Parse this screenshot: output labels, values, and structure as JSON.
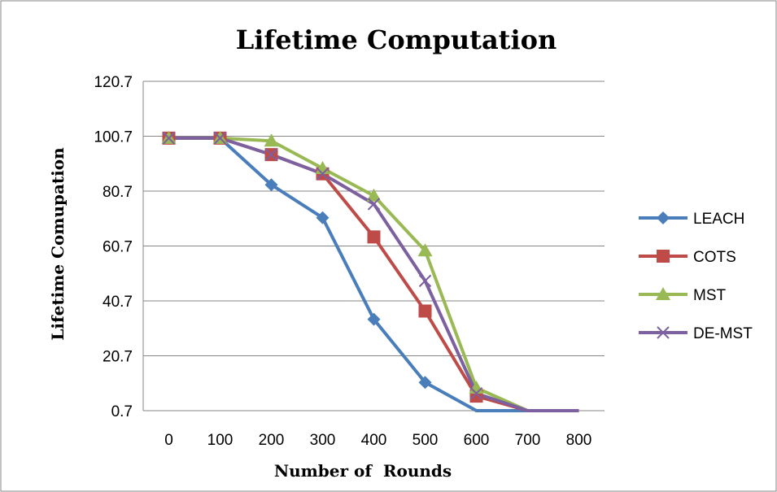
{
  "chart_data": {
    "type": "line",
    "title": "Lifetime Computation",
    "xlabel": "Number of  Rounds",
    "ylabel": "Lifetime Comupation",
    "x": [
      0,
      100,
      200,
      300,
      400,
      500,
      600,
      700,
      800
    ],
    "x_ticks": [
      "0",
      "100",
      "200",
      "300",
      "400",
      "500",
      "600",
      "700",
      "800"
    ],
    "y_ticks": [
      "0.7",
      "20.7",
      "40.7",
      "60.7",
      "80.7",
      "100.7",
      "120.7"
    ],
    "ylim": [
      0.7,
      120.7
    ],
    "grid": true,
    "legend_position": "right",
    "series": [
      {
        "name": "LEACH",
        "color": "#4A7EBB",
        "marker": "diamond",
        "values": [
          100,
          100,
          83,
          71,
          34,
          11,
          0.7,
          0.7,
          0.7
        ]
      },
      {
        "name": "COTS",
        "color": "#BE4B48",
        "marker": "square",
        "values": [
          100,
          100,
          94,
          87,
          64,
          37,
          6,
          0.7,
          0.7
        ]
      },
      {
        "name": "MST",
        "color": "#98B954",
        "marker": "triangle",
        "values": [
          100,
          100,
          99,
          89,
          79,
          59,
          9,
          0.7,
          0.7
        ]
      },
      {
        "name": "DE-MST",
        "color": "#7D60A0",
        "marker": "x",
        "values": [
          100,
          100,
          94,
          87,
          76,
          48,
          7,
          0.7,
          0.7
        ]
      }
    ]
  }
}
